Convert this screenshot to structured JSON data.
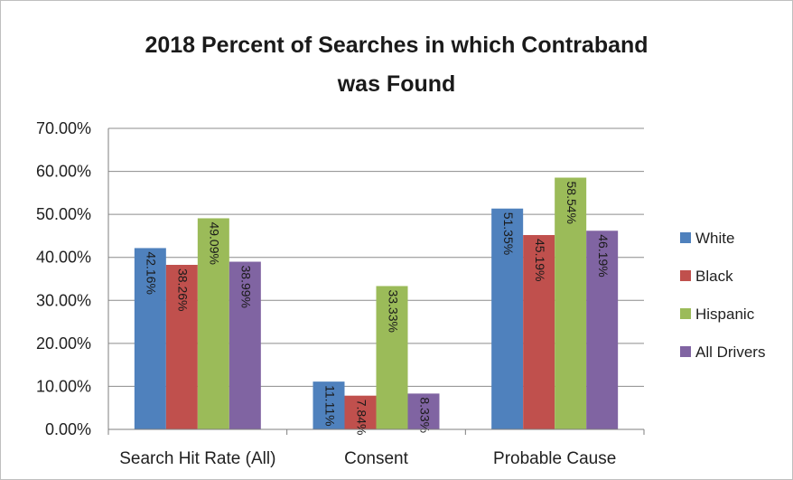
{
  "chart_data": {
    "type": "bar",
    "title": "2018 Percent of Searches in which Contraband was Found",
    "title_lines": [
      "2018 Percent of Searches in which Contraband",
      "was Found"
    ],
    "categories": [
      "Search Hit Rate (All)",
      "Consent",
      "Probable Cause"
    ],
    "series": [
      {
        "name": "White",
        "color": "#4f81bd",
        "values": [
          42.16,
          11.11,
          51.35
        ],
        "labels": [
          "42.16%",
          "11.11%",
          "51.35%"
        ]
      },
      {
        "name": "Black",
        "color": "#c0504d",
        "values": [
          38.26,
          7.84,
          45.19
        ],
        "labels": [
          "38.26%",
          "7.84%",
          "45.19%"
        ]
      },
      {
        "name": "Hispanic",
        "color": "#9bbb59",
        "values": [
          49.09,
          33.33,
          58.54
        ],
        "labels": [
          "49.09%",
          "33.33%",
          "58.54%"
        ]
      },
      {
        "name": "All Drivers",
        "color": "#8064a2",
        "values": [
          38.99,
          8.33,
          46.19
        ],
        "labels": [
          "38.99%",
          "8.33%",
          "46.19%"
        ]
      }
    ],
    "ylim": [
      0,
      70
    ],
    "yticks": [
      0,
      10,
      20,
      30,
      40,
      50,
      60,
      70
    ],
    "ytick_labels": [
      "0.00%",
      "10.00%",
      "20.00%",
      "30.00%",
      "40.00%",
      "50.00%",
      "60.00%",
      "70.00%"
    ],
    "xlabel": "",
    "ylabel": "",
    "grid": true,
    "legend_position": "right"
  }
}
